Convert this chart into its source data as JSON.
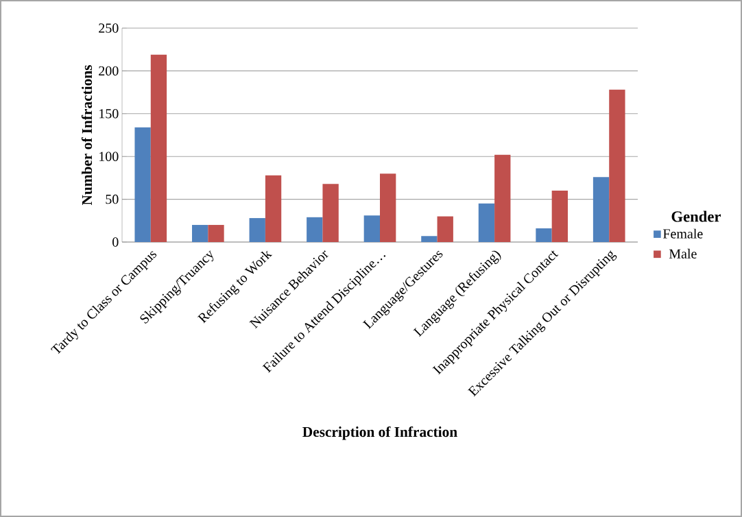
{
  "chart_data": {
    "type": "bar",
    "xlabel": "Description of Infraction",
    "ylabel": "Number of Infractions",
    "legend_title": "Gender",
    "categories": [
      "Tardy to Class or Campus",
      "Skipping/Truancy",
      "Refusing to Work",
      "Nuisance Behavior",
      "Failure to Attend Discipline…",
      "Language/Gestures",
      "Language (Refusing)",
      "Inappropriate Physical Contact",
      "Excessive Talking Out or Disrupting"
    ],
    "series": [
      {
        "name": "Female",
        "color": "#4f81bd",
        "values": [
          134,
          20,
          28,
          29,
          31,
          7,
          45,
          16,
          76
        ]
      },
      {
        "name": "Male",
        "color": "#c0504d",
        "values": [
          219,
          20,
          78,
          68,
          80,
          30,
          102,
          60,
          178
        ]
      }
    ],
    "ylim": [
      0,
      250
    ],
    "yticks": [
      0,
      50,
      100,
      150,
      200,
      250
    ],
    "grid": "y",
    "legend": "right"
  }
}
